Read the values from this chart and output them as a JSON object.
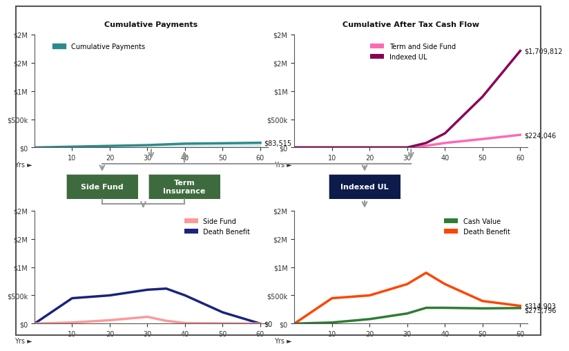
{
  "bg_color": "#ffffff",
  "border_color": "#333333",
  "top_left_title": "Cumulative Payments",
  "top_right_title": "Cumulative After Tax Cash Flow",
  "bot_left_title_lines": [
    "Side Fund",
    "Death Benefit"
  ],
  "bot_right_title_lines": [
    "Cash Value",
    "Death Benefit"
  ],
  "years": [
    0,
    10,
    20,
    30,
    35,
    40,
    50,
    60
  ],
  "cum_payments": [
    0,
    14000,
    28000,
    42000,
    55000,
    68000,
    75000,
    83515
  ],
  "term_side_fund": [
    0,
    0,
    0,
    0,
    30000,
    80000,
    150000,
    224046
  ],
  "indexed_ul_cashflow": [
    0,
    0,
    0,
    0,
    80000,
    250000,
    900000,
    1709812
  ],
  "side_fund": [
    0,
    20000,
    60000,
    120000,
    50000,
    10000,
    5000,
    0
  ],
  "death_benefit_term": [
    0,
    450000,
    500000,
    600000,
    620000,
    500000,
    200000,
    0
  ],
  "cash_value_ul": [
    0,
    20000,
    80000,
    180000,
    280000,
    280000,
    270000,
    275796
  ],
  "death_benefit_ul": [
    0,
    450000,
    500000,
    700000,
    900000,
    700000,
    400000,
    314903
  ],
  "cum_payments_end_label": "$83,515",
  "term_side_fund_end_label": "$224,046",
  "indexed_ul_end_label": "$1,709,812",
  "side_fund_end_label": "$0",
  "death_benefit_term_end_label": "",
  "cash_value_end_label": "$275,796",
  "death_benefit_ul_end_label": "$314,903",
  "teal_color": "#2e8b8b",
  "pink_color": "#ff69b4",
  "dark_magenta_color": "#8b0057",
  "salmon_color": "#ff9999",
  "navy_color": "#1a237e",
  "green_color": "#2e7d32",
  "orange_red_color": "#ff4500",
  "side_fund_box_color": "#3d6b3d",
  "term_ins_box_color": "#3d6b3d",
  "indexed_ul_box_color": "#0d1b4b",
  "box_text_color": "#ffffff",
  "arrow_color": "#999999",
  "connector_color": "#999999"
}
